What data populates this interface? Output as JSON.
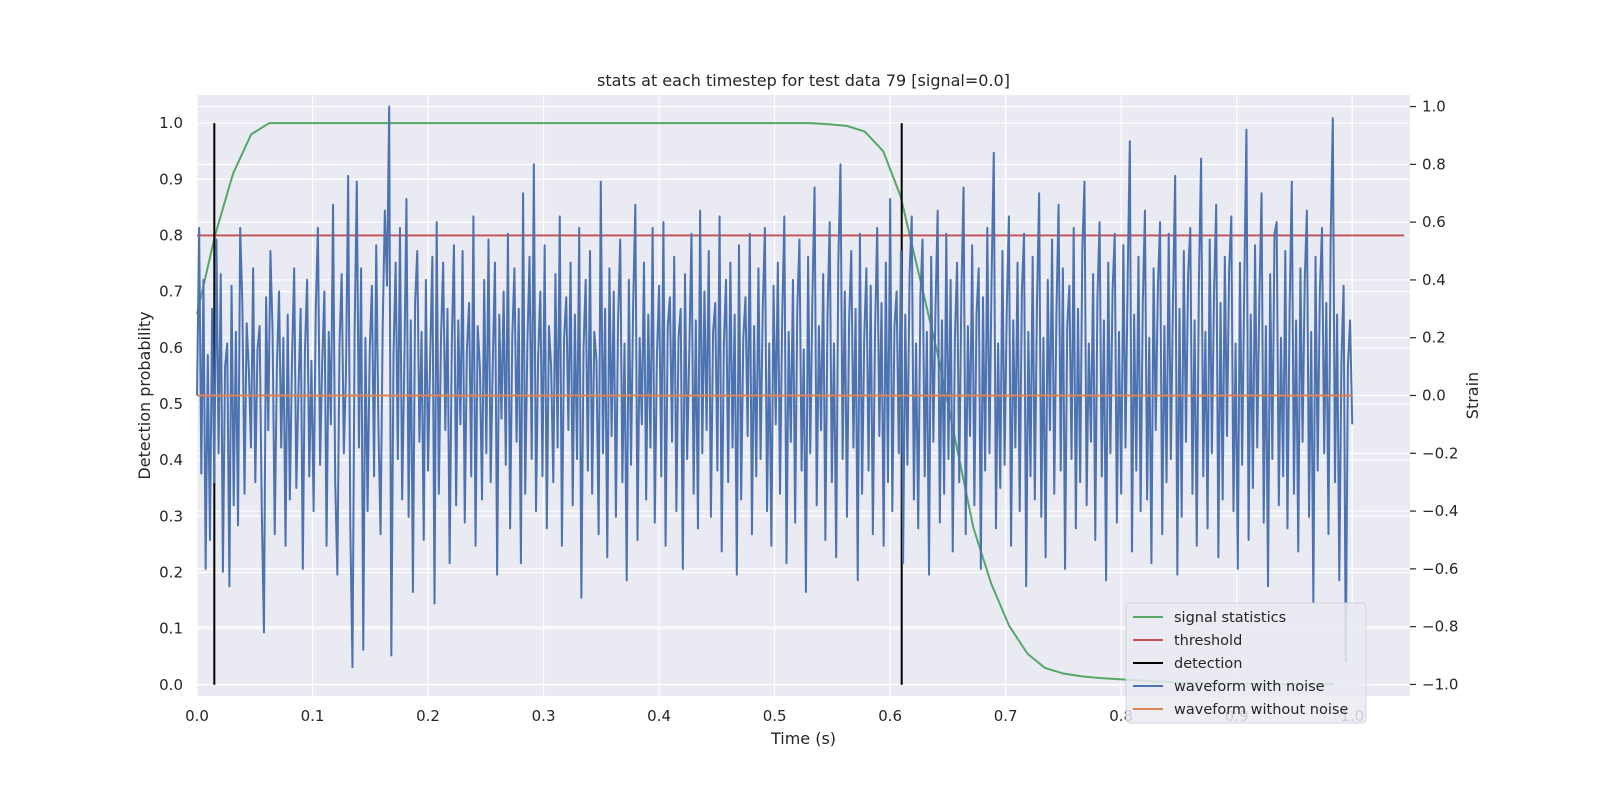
{
  "chart_data": {
    "type": "line",
    "title": "stats at each timestep for test data 79 [signal=0.0]",
    "xlabel": "Time (s)",
    "ylabel": "Detection probability",
    "y2label": "Strain",
    "xlim": [
      0.0,
      1.05
    ],
    "ylim": [
      -0.02,
      1.05
    ],
    "y2lim": [
      -1.04,
      1.04
    ],
    "grid": true,
    "legend_position": "lower right",
    "x_ticks": [
      "0.0",
      "0.1",
      "0.2",
      "0.3",
      "0.4",
      "0.5",
      "0.6",
      "0.7",
      "0.8",
      "0.9",
      "1.0"
    ],
    "y_ticks": [
      "0.0",
      "0.1",
      "0.2",
      "0.3",
      "0.4",
      "0.5",
      "0.6",
      "0.7",
      "0.8",
      "0.9",
      "1.0"
    ],
    "y2_ticks": [
      "−1.0",
      "−0.8",
      "−0.6",
      "−0.4",
      "−0.2",
      "0.0",
      "0.2",
      "0.4",
      "0.6",
      "0.8",
      "1.0"
    ],
    "colors": {
      "signal_statistics": "#55a868",
      "threshold": "#c44e52",
      "detection": "#000000",
      "waveform_with_noise": "#4c72b0",
      "waveform_without_noise": "#dd8452",
      "background": "#eaeaf2",
      "grid": "#ffffff"
    },
    "legend": [
      {
        "label": "signal statistics",
        "color": "#55a868"
      },
      {
        "label": "threshold",
        "color": "#c44e52"
      },
      {
        "label": "detection",
        "color": "#000000"
      },
      {
        "label": "waveform with noise",
        "color": "#4c72b0"
      },
      {
        "label": "waveform without noise",
        "color": "#dd8452"
      }
    ],
    "series": [
      {
        "name": "signal statistics",
        "axis": "left",
        "x": [
          0.0,
          0.0156,
          0.0312,
          0.0469,
          0.0625,
          0.0781,
          0.1,
          0.2,
          0.3,
          0.4,
          0.5,
          0.531,
          0.547,
          0.5625,
          0.578,
          0.594,
          0.609,
          0.625,
          0.641,
          0.656,
          0.672,
          0.6875,
          0.703,
          0.719,
          0.734,
          0.75,
          0.766,
          0.781,
          0.797,
          0.8125,
          0.828,
          0.85,
          0.9,
          0.95,
          0.984
        ],
        "y": [
          0.66,
          0.8,
          0.91,
          0.98,
          1.0,
          1.0,
          1.0,
          1.0,
          1.0,
          1.0,
          1.0,
          1.0,
          0.998,
          0.995,
          0.985,
          0.95,
          0.87,
          0.73,
          0.59,
          0.44,
          0.28,
          0.18,
          0.105,
          0.055,
          0.03,
          0.02,
          0.015,
          0.012,
          0.01,
          0.008,
          0.006,
          0.004,
          0.002,
          0.001,
          0.001
        ]
      },
      {
        "name": "threshold",
        "axis": "left",
        "x": [
          0.0,
          1.045
        ],
        "y": [
          0.8,
          0.8
        ]
      },
      {
        "name": "detection",
        "axis": "left",
        "segments": [
          {
            "x": 0.015,
            "y": [
              0.0,
              1.0
            ]
          },
          {
            "x": 0.61,
            "y": [
              0.0,
              1.0
            ]
          }
        ]
      },
      {
        "name": "waveform with noise",
        "axis": "right",
        "x_start": 0.0,
        "x_end": 1.0,
        "values": [
          0.0,
          0.58,
          -0.27,
          0.4,
          -0.6,
          0.14,
          -0.5,
          0.3,
          -0.3,
          0.54,
          -0.2,
          0.42,
          -0.61,
          0.1,
          0.18,
          -0.66,
          0.38,
          -0.38,
          0.22,
          -0.45,
          0.58,
          0.32,
          -0.34,
          0.25,
          0.09,
          -0.18,
          0.44,
          -0.3,
          0.16,
          0.24,
          -0.4,
          -0.82,
          0.34,
          -0.12,
          0.5,
          0.22,
          -0.48,
          0.1,
          0.36,
          -0.18,
          0.2,
          -0.52,
          0.28,
          -0.36,
          0.12,
          0.44,
          -0.32,
          0.02,
          0.3,
          -0.6,
          0.16,
          0.4,
          -0.28,
          0.12,
          -0.4,
          0.3,
          0.58,
          -0.24,
          0.12,
          0.36,
          -0.52,
          0.22,
          -0.1,
          0.66,
          -0.3,
          -0.62,
          0.18,
          0.42,
          -0.2,
          0.08,
          0.76,
          -0.46,
          -0.94,
          0.22,
          0.74,
          -0.18,
          0.44,
          -0.88,
          0.2,
          -0.4,
          0.16,
          0.38,
          -0.28,
          0.52,
          -0.1,
          -0.48,
          0.24,
          0.64,
          0.38,
          1.0,
          -0.9,
          0.14,
          0.46,
          -0.22,
          0.58,
          -0.36,
          0.1,
          0.68,
          -0.42,
          0.26,
          -0.68,
          0.32,
          0.5,
          -0.16,
          0.22,
          -0.5,
          0.4,
          -0.26,
          0.14,
          0.48,
          -0.72,
          0.6,
          -0.34,
          0.2,
          0.46,
          -0.12,
          0.3,
          -0.58,
          0.18,
          0.52,
          -0.38,
          0.26,
          -0.1,
          0.5,
          -0.44,
          0.16,
          0.32,
          -0.28,
          0.62,
          -0.52,
          0.24,
          0.1,
          -0.36,
          0.4,
          -0.2,
          0.54,
          -0.3,
          0.12,
          0.46,
          -0.62,
          0.28,
          -0.08,
          0.36,
          -0.24,
          0.56,
          -0.46,
          0.2,
          0.44,
          -0.16,
          0.3,
          -0.58,
          0.7,
          -0.34,
          0.18,
          0.48,
          -0.22,
          0.8,
          -0.4,
          0.14,
          0.36,
          -0.28,
          0.52,
          -0.46,
          0.24,
          0.1,
          -0.3,
          0.42,
          -0.18,
          0.62,
          -0.52,
          0.2,
          0.34,
          -0.12,
          0.46,
          -0.38,
          0.28,
          -0.22,
          0.58,
          -0.7,
          0.16,
          0.4,
          -0.26,
          0.5,
          -0.34,
          0.22,
          0.12,
          -0.48,
          0.74,
          -0.2,
          0.3,
          -0.56,
          0.44,
          -0.14,
          0.36,
          -0.42,
          0.26,
          0.54,
          -0.3,
          0.18,
          -0.64,
          0.4,
          -0.24,
          0.32,
          0.66,
          -0.5,
          0.2,
          -0.1,
          0.46,
          -0.36,
          0.28,
          -0.18,
          0.58,
          -0.44,
          0.14,
          0.38,
          -0.28,
          0.6,
          -0.52,
          0.24,
          0.34,
          -0.16,
          0.48,
          -0.4,
          0.2,
          0.3,
          -0.6,
          0.42,
          -0.22,
          0.16,
          0.56,
          -0.34,
          0.26,
          -0.46,
          0.64,
          -0.2,
          0.36,
          -0.12,
          0.5,
          -0.42,
          0.22,
          0.32,
          -0.26,
          0.62,
          -0.54,
          0.18,
          0.4,
          -0.3,
          0.46,
          -0.18,
          0.28,
          -0.62,
          0.52,
          -0.36,
          0.2,
          0.34,
          -0.14,
          0.56,
          -0.48,
          0.24,
          -0.28,
          0.44,
          -0.22,
          0.3,
          0.58,
          -0.4,
          0.18,
          -0.52,
          0.38,
          -0.1,
          0.46,
          -0.34,
          0.26,
          0.62,
          -0.58,
          0.22,
          -0.16,
          0.4,
          -0.44,
          0.3,
          0.54,
          -0.26,
          0.16,
          -0.68,
          0.48,
          -0.2,
          0.34,
          0.72,
          -0.38,
          0.24,
          -0.12,
          0.42,
          -0.5,
          0.28,
          0.6,
          -0.3,
          0.18,
          -0.56,
          0.46,
          0.8,
          -0.22,
          0.36,
          -0.42,
          0.26,
          0.5,
          -0.18,
          0.3,
          -0.64,
          0.56,
          -0.34,
          0.2,
          0.44,
          -0.26,
          0.38,
          -0.48,
          0.22,
          0.58,
          -0.14,
          0.32,
          -0.52,
          0.46,
          -0.3,
          0.68,
          -0.4,
          0.24,
          0.36,
          -0.2,
          0.5,
          -0.58,
          0.28,
          -0.24,
          0.42,
          0.62,
          -0.36,
          0.18,
          -0.46,
          0.34,
          0.54,
          -0.28,
          0.22,
          -0.62,
          0.48,
          -0.16,
          0.3,
          0.64,
          -0.44,
          0.26,
          -0.34,
          0.56,
          -0.22,
          0.4,
          -0.54,
          0.2,
          0.46,
          -0.3,
          0.36,
          0.72,
          -0.48,
          0.24,
          -0.14,
          0.52,
          -0.38,
          0.28,
          0.44,
          -0.6,
          0.34,
          -0.26,
          0.58,
          -0.2,
          0.42,
          0.84,
          -0.46,
          0.18,
          -0.32,
          0.5,
          -0.24,
          0.3,
          0.62,
          -0.52,
          0.26,
          -0.18,
          0.46,
          -0.4,
          0.36,
          0.56,
          -0.66,
          0.22,
          -0.28,
          0.48,
          -0.36,
          0.32,
          0.7,
          -0.42,
          0.2,
          -0.56,
          0.4,
          -0.12,
          0.54,
          -0.34,
          0.28,
          0.66,
          -0.26,
          0.44,
          -0.6,
          0.24,
          0.38,
          -0.22,
          0.58,
          -0.46,
          0.3,
          -0.3,
          0.5,
          0.74,
          -0.38,
          0.18,
          -0.16,
          0.42,
          -0.5,
          0.34,
          0.6,
          -0.28,
          0.26,
          -0.64,
          0.46,
          -0.2,
          0.36,
          0.56,
          -0.44,
          0.22,
          -0.34,
          0.52,
          -0.18,
          0.4,
          0.88,
          -0.54,
          0.28,
          -0.26,
          0.48,
          -0.4,
          0.32,
          0.64,
          -0.36,
          0.2,
          -0.58,
          0.44,
          -0.12,
          0.38,
          0.6,
          -0.48,
          0.24,
          -0.3,
          0.56,
          -0.22,
          0.34,
          0.76,
          -0.62,
          0.3,
          -0.42,
          0.5,
          -0.16,
          0.42,
          0.58,
          -0.34,
          0.26,
          -0.52,
          0.4,
          0.82,
          -0.28,
          0.22,
          -0.46,
          0.54,
          -0.2,
          0.36,
          0.66,
          -0.56,
          0.32,
          -0.36,
          0.48,
          -0.14,
          0.44,
          0.62,
          -0.4,
          0.18,
          -0.6,
          0.46,
          -0.24,
          0.38,
          0.92,
          -0.5,
          0.28,
          -0.32,
          0.52,
          -0.18,
          0.34,
          0.7,
          -0.44,
          0.24,
          -0.66,
          0.42,
          -0.22,
          0.56,
          0.6,
          -0.38,
          0.2,
          -0.28,
          0.5,
          -0.46,
          0.3,
          0.74,
          -0.34,
          0.26,
          -0.54,
          0.44,
          -0.16,
          0.4,
          0.64,
          -0.42,
          0.22,
          -0.72,
          0.48,
          -0.26,
          0.36,
          0.58,
          -0.2,
          0.32,
          -0.48,
          0.54,
          0.96,
          -0.3,
          0.28,
          -0.64,
          0.12,
          0.38,
          -0.92,
          0.1,
          0.26,
          -0.1
        ]
      },
      {
        "name": "waveform without noise",
        "axis": "right",
        "x": [
          0.0,
          1.0
        ],
        "y": [
          0.0,
          0.0
        ]
      }
    ]
  }
}
